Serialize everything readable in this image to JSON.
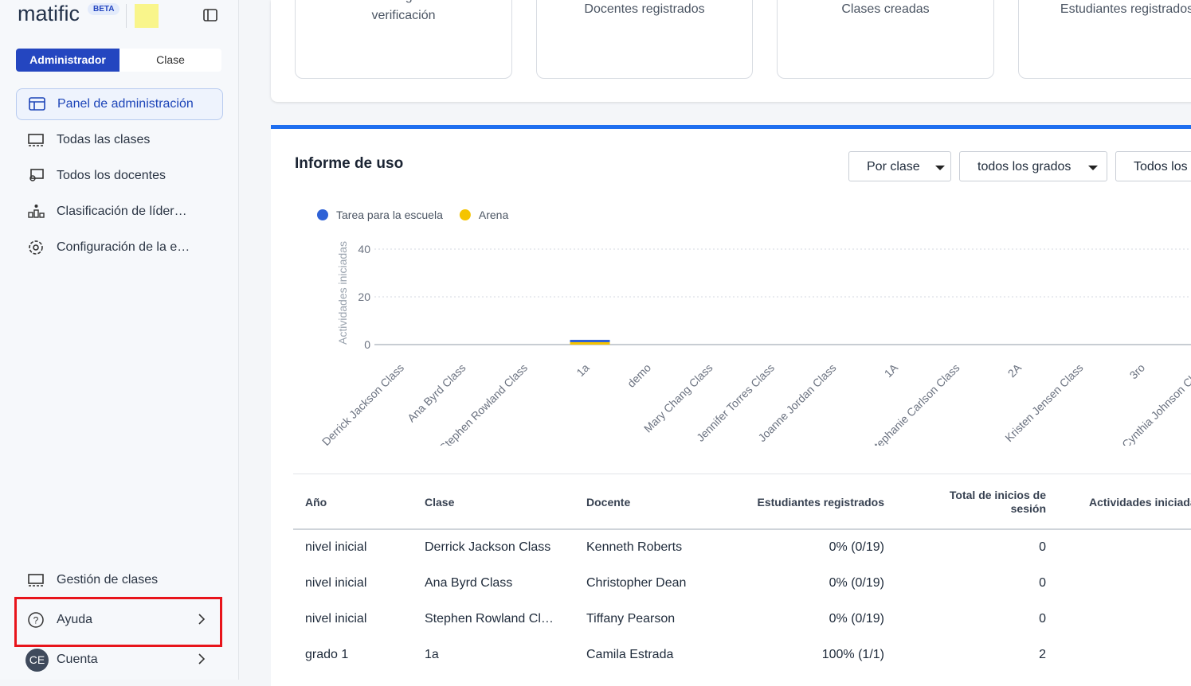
{
  "sidebar": {
    "logo": "matific",
    "badge": "BETA",
    "tabs": [
      "Administrador",
      "Clase"
    ],
    "nav": [
      "Panel de administración",
      "Todas las clases",
      "Todos los docentes",
      "Clasificación de líder…",
      "Configuración de la e…"
    ],
    "bottom": [
      "Gestión de clases",
      "Ayuda",
      "Cuenta"
    ],
    "avatar": "CE"
  },
  "cards": [
    "Docentes aguardando verificación",
    "Docentes registrados",
    "Clases creadas",
    "Estudiantes registrados"
  ],
  "report": {
    "title": "Informe de uso",
    "filters": [
      "Por clase",
      "todos los grados",
      "Todos los"
    ]
  },
  "chart_data": {
    "type": "bar",
    "stacked": true,
    "y_label": "Actividades iniciadas",
    "categories": [
      "Derrick Jackson Class",
      "Ana Byrd Class",
      "Stephen Rowland Class",
      "1a",
      "demo",
      "Mary Chang Class",
      "Jennifer Torres Class",
      "Joanne Jordan Class",
      "1A",
      "Stephanie Carlson Class",
      "2A",
      "Kristen Jensen Class",
      "3ro",
      "Cynthia Johnson Class"
    ],
    "series": [
      {
        "name": "Tarea para la escuela",
        "color": "#2f62d6",
        "values": [
          0,
          0,
          0,
          1,
          0,
          0,
          0,
          0,
          0,
          0,
          0,
          0,
          0,
          0
        ]
      },
      {
        "name": "Arena",
        "color": "#f5c400",
        "values": [
          0,
          0,
          0,
          1,
          0,
          0,
          0,
          0,
          0,
          0,
          0,
          0,
          0,
          0
        ]
      }
    ],
    "ylim": [
      0,
      40
    ],
    "yticks": [
      0,
      20,
      40
    ],
    "grid": true
  },
  "table": {
    "headers": [
      "Año",
      "Clase",
      "Docente",
      "Estudiantes registrados",
      "Total de inicios de sesión",
      "Actividades iniciadas"
    ],
    "rows": [
      [
        "nivel inicial",
        "Derrick Jackson Class",
        "Kenneth Roberts",
        "0% (0/19)",
        "0"
      ],
      [
        "nivel inicial",
        "Ana Byrd Class",
        "Christopher Dean",
        "0% (0/19)",
        "0"
      ],
      [
        "nivel inicial",
        "Stephen Rowland Cl…",
        "Tiffany Pearson",
        "0% (0/19)",
        "0"
      ],
      [
        "grado 1",
        "1a",
        "Camila Estrada",
        "100% (1/1)",
        "2"
      ]
    ]
  }
}
